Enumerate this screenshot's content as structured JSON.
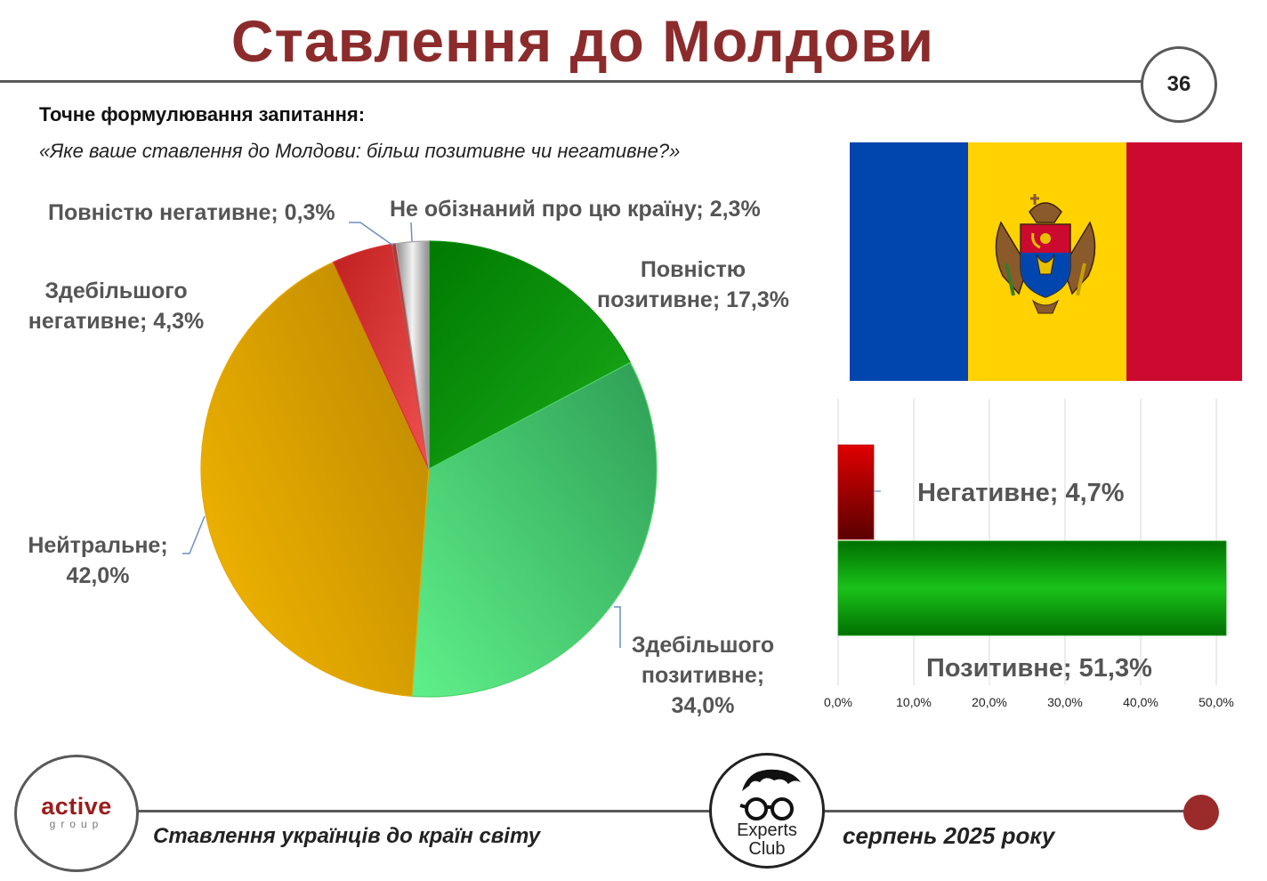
{
  "header": {
    "title": "Ставлення до Молдови",
    "page_number": "36"
  },
  "question": {
    "label": "Точне формулювання запитання:",
    "text": "«Яке ваше ставлення до Молдови: більш позитивне чи негативне?»"
  },
  "colors": {
    "title": "#8c2b2b",
    "strong_positive": "#0a8f0a",
    "mostly_positive": "#4fd36a",
    "neutral": "#e6a800",
    "mostly_negative": "#d93030",
    "strong_negative": "#c0504d",
    "unaware": "#a6a6a6",
    "flag_blue": "#0046ae",
    "flag_yellow": "#ffd200",
    "flag_red": "#cc092f"
  },
  "chart_data": [
    {
      "type": "pie",
      "labels": [
        "Повністю позитивне; 17,3%",
        "Здебільшого позитивне; 34,0%",
        "Нейтральне; 42,0%",
        "Здебільшого негативне; 4,3%",
        "Повністю негативне; 0,3%",
        "Не обізнаний про цю країну; 2,3%"
      ],
      "label_lines": [
        [
          "Повністю",
          "позитивне; 17,3%"
        ],
        [
          "Здебільшого",
          "позитивне;",
          "34,0%"
        ],
        [
          "Нейтральне;",
          "42,0%"
        ],
        [
          "Здебільшого",
          "негативне; 4,3%"
        ],
        [
          "Повністю негативне; 0,3%"
        ],
        [
          "Не обізнаний про цю країну; 2,3%"
        ]
      ],
      "values": [
        17.3,
        34.0,
        42.0,
        4.3,
        0.3,
        2.3
      ],
      "colors": [
        "#0a8f0a",
        "#4fd36a",
        "#e6a800",
        "#d93030",
        "#c0504d",
        "#a6a6a6"
      ]
    },
    {
      "type": "bar",
      "orientation": "horizontal",
      "categories": [
        "Негативне",
        "Позитивне"
      ],
      "values": [
        4.7,
        51.3
      ],
      "data_labels": [
        "Негативне; 4,7%",
        "Позитивне; 51,3%"
      ],
      "colors": [
        "#b00000",
        "#11a011"
      ],
      "xlim": [
        0,
        50
      ],
      "x_ticks": [
        "0,0%",
        "10,0%",
        "20,0%",
        "30,0%",
        "40,0%",
        "50,0%"
      ],
      "grid": true
    }
  ],
  "footer": {
    "left_logo_big": "active",
    "left_logo_small": "group",
    "left_text": "Ставлення українців до країн світу",
    "center_logo_line1": "Experts",
    "center_logo_line2": "Club",
    "right_text": "серпень 2025 року"
  }
}
